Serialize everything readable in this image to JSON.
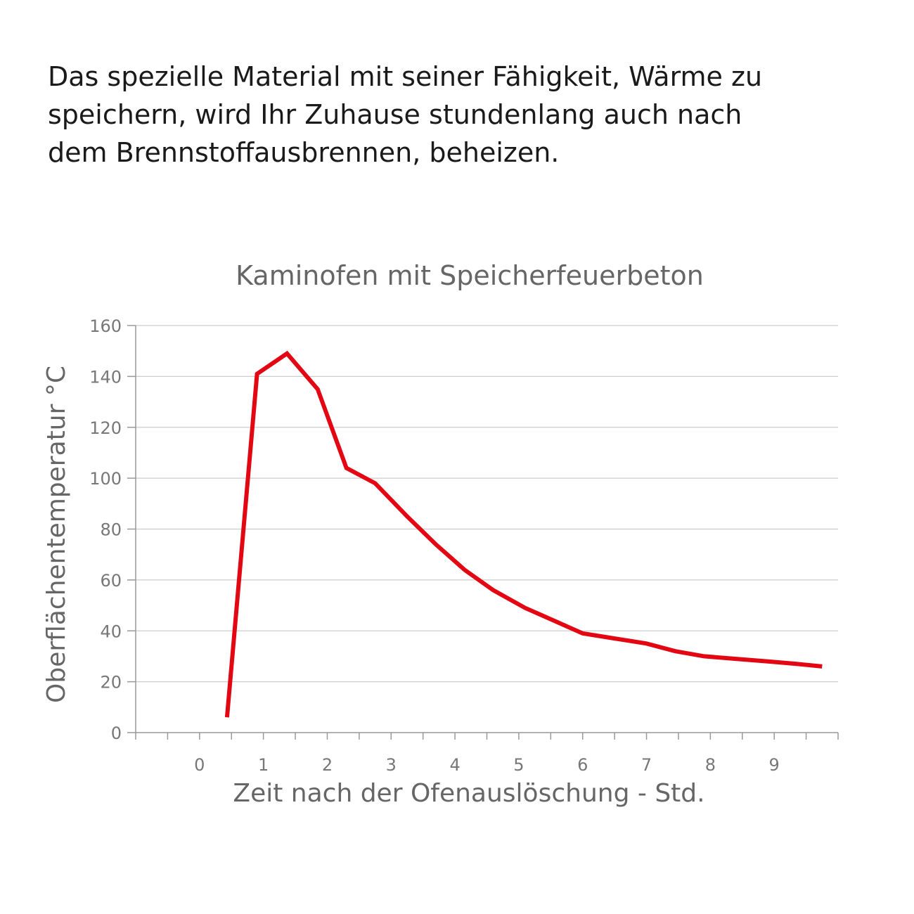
{
  "intro": {
    "lines": [
      "Das spezielle Material mit seiner Fähigkeit, Wärme zu",
      "speichern, wird Ihr Zuhause stundenlang auch nach",
      "dem Brennstoffausbrennen, beheizen."
    ]
  },
  "chart_data": {
    "type": "line",
    "title": "Kaminofen mit Speicherfeuerbeton",
    "xlabel": "Zeit nach der Ofenauslöschung - Std.",
    "ylabel": "Oberflächentemperatur °C",
    "xlim": [
      -1,
      10
    ],
    "ylim": [
      0,
      160
    ],
    "x_ticks": [
      0,
      1,
      2,
      3,
      4,
      5,
      6,
      7,
      8,
      9
    ],
    "y_ticks": [
      0,
      20,
      40,
      60,
      80,
      100,
      120,
      140,
      160
    ],
    "grid": true,
    "series": [
      {
        "name": "Kaminofen mit Speicherfeuerbeton",
        "color": "#e30613",
        "x": [
          0.43,
          0.9,
          1.37,
          1.85,
          2.3,
          2.75,
          3.25,
          3.7,
          4.15,
          4.6,
          5.1,
          5.55,
          6.0,
          6.5,
          7.0,
          7.45,
          7.9,
          8.4,
          8.9,
          9.35,
          9.75
        ],
        "y": [
          6,
          141,
          149,
          135,
          104,
          98,
          85,
          74,
          64,
          56,
          49,
          44,
          39,
          37,
          35,
          32,
          30,
          29,
          28,
          27,
          26
        ]
      }
    ]
  }
}
